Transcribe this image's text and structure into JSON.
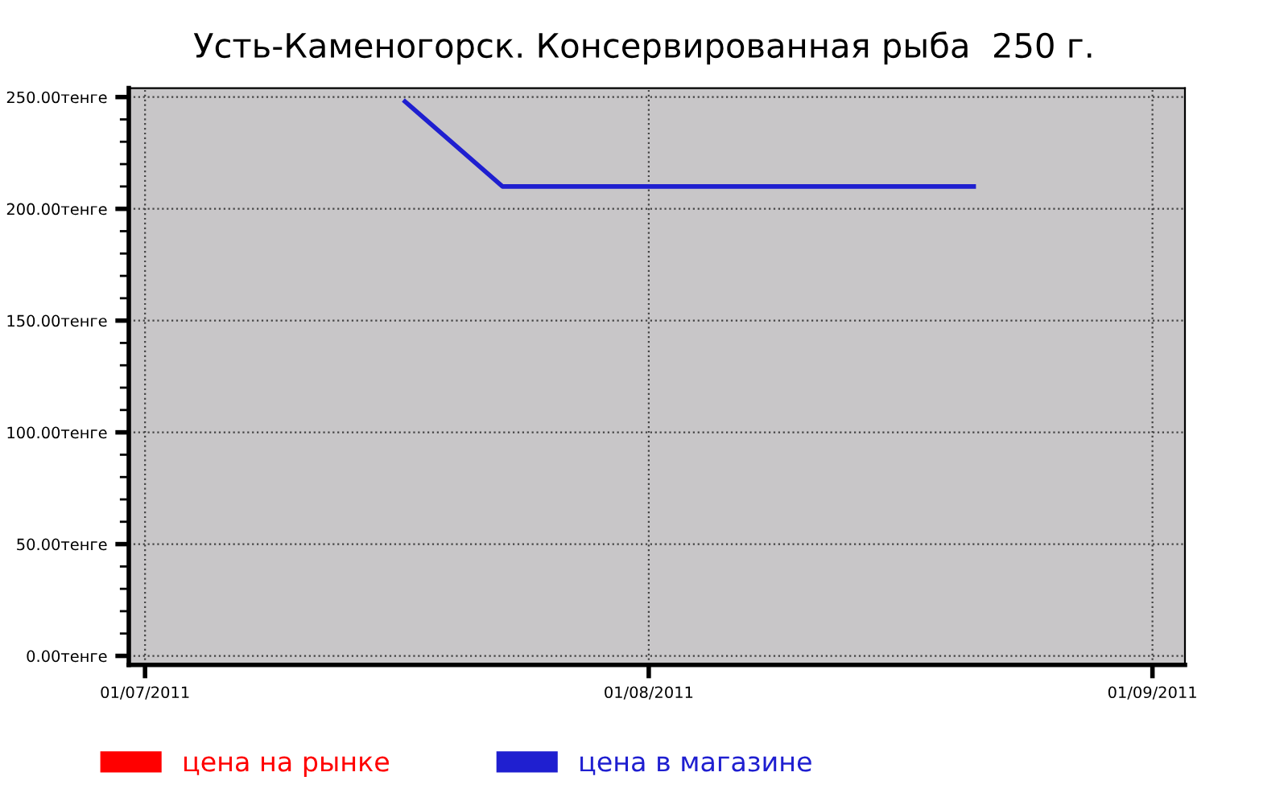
{
  "chart_data": {
    "type": "line",
    "title": "Усть-Каменогорск. Консервированная рыба  250 г.",
    "x": [
      "2011-07-17",
      "2011-07-23",
      "2011-08-21"
    ],
    "series": [
      {
        "name": "цена на рынке",
        "color": "#ff0000",
        "values": [
          null,
          null,
          null
        ]
      },
      {
        "name": "цена в магазине",
        "color": "#1f1fd0",
        "values": [
          248,
          210,
          210
        ]
      }
    ],
    "xlim": [
      "2011-06-30",
      "2011-09-03"
    ],
    "xticks": [
      {
        "value": "2011-07-01",
        "label": "01/07/2011"
      },
      {
        "value": "2011-08-01",
        "label": "01/08/2011"
      },
      {
        "value": "2011-09-01",
        "label": "01/09/2011"
      }
    ],
    "ylim": [
      -4,
      254
    ],
    "yticks": [
      {
        "value": 0,
        "label": "0.00тенге"
      },
      {
        "value": 50,
        "label": "50.00тенге"
      },
      {
        "value": 100,
        "label": "100.00тенге"
      },
      {
        "value": 150,
        "label": "150.00тенге"
      },
      {
        "value": 200,
        "label": "200.00тенге"
      },
      {
        "value": 250,
        "label": "250.00тенге"
      }
    ],
    "grid": true,
    "legend": "bottom",
    "marker": "none",
    "line_style": "solid"
  }
}
